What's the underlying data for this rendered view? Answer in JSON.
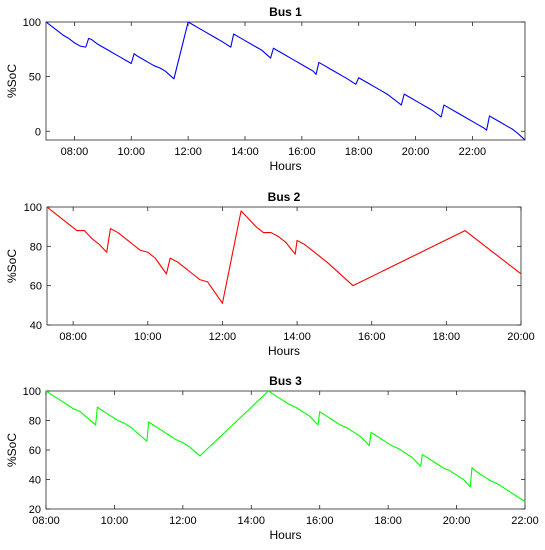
{
  "chart_data": [
    {
      "type": "line",
      "title": "Bus 1",
      "xlabel": "Hours",
      "ylabel": "%SoC",
      "color": "#0000ff",
      "xlim": [
        7.0,
        23.85
      ],
      "ylim": [
        -8,
        100
      ],
      "xticks": [
        8,
        10,
        12,
        14,
        16,
        18,
        20,
        22
      ],
      "xtick_labels": [
        "08:00",
        "10:00",
        "12:00",
        "14:00",
        "16:00",
        "18:00",
        "20:00",
        "22:00"
      ],
      "yticks": [
        0,
        50,
        100
      ],
      "ytick_labels": [
        "0",
        "50",
        "100"
      ],
      "grid": false,
      "x": [
        7.0,
        7.2,
        7.4,
        7.6,
        7.8,
        8.0,
        8.2,
        8.4,
        8.5,
        8.6,
        8.8,
        9.0,
        9.2,
        9.4,
        9.6,
        9.8,
        10.0,
        10.1,
        10.2,
        10.4,
        10.6,
        10.8,
        11.0,
        11.2,
        11.5,
        12.0,
        12.2,
        12.4,
        12.6,
        12.8,
        13.0,
        13.2,
        13.5,
        13.6,
        13.8,
        14.0,
        14.2,
        14.4,
        14.6,
        14.9,
        15.0,
        15.2,
        15.4,
        15.6,
        15.8,
        16.0,
        16.2,
        16.4,
        16.5,
        16.6,
        16.8,
        17.0,
        17.2,
        17.4,
        17.6,
        17.9,
        18.0,
        18.2,
        18.4,
        18.6,
        18.8,
        19.0,
        19.2,
        19.4,
        19.5,
        19.6,
        19.8,
        20.0,
        20.2,
        20.4,
        20.6,
        20.9,
        21.0,
        21.2,
        21.4,
        21.6,
        21.8,
        22.0,
        22.2,
        22.4,
        22.5,
        22.6,
        22.8,
        23.0,
        23.2,
        23.4,
        23.6,
        23.85
      ],
      "y": [
        100,
        96,
        92,
        88,
        85,
        81,
        78,
        77,
        85,
        84,
        80,
        77,
        74,
        71,
        68,
        65,
        62,
        71,
        69,
        66,
        63,
        60,
        58,
        55,
        48,
        100,
        97,
        94,
        91,
        88,
        85,
        82,
        77,
        89,
        86,
        83,
        80,
        77,
        74,
        67,
        76,
        73,
        70,
        67,
        64,
        61,
        58,
        55,
        52,
        63,
        60,
        57,
        54,
        51,
        48,
        43,
        49,
        46,
        43,
        40,
        37,
        34,
        30,
        26,
        24,
        34,
        31,
        28,
        25,
        22,
        19,
        13,
        24,
        21,
        18,
        15,
        12,
        9,
        6,
        3,
        1,
        14,
        11,
        8,
        5,
        2,
        -2,
        -8
      ]
    },
    {
      "type": "line",
      "title": "Bus 2",
      "xlabel": "Hours",
      "ylabel": "%SoC",
      "color": "#ff0000",
      "xlim": [
        7.3,
        20.0
      ],
      "ylim": [
        40,
        100
      ],
      "xticks": [
        8,
        10,
        12,
        14,
        16,
        18,
        20
      ],
      "xtick_labels": [
        "08:00",
        "10:00",
        "12:00",
        "14:00",
        "16:00",
        "18:00",
        "20:00"
      ],
      "yticks": [
        40,
        60,
        80,
        100
      ],
      "ytick_labels": [
        "40",
        "60",
        "80",
        "100"
      ],
      "grid": false,
      "x": [
        7.3,
        7.5,
        7.7,
        7.9,
        8.1,
        8.3,
        8.5,
        8.7,
        8.9,
        9.0,
        9.2,
        9.4,
        9.6,
        9.8,
        10.0,
        10.2,
        10.5,
        10.6,
        10.8,
        11.0,
        11.2,
        11.4,
        11.6,
        12.0,
        12.5,
        12.7,
        12.9,
        13.1,
        13.3,
        13.5,
        13.7,
        13.95,
        14.0,
        14.2,
        14.4,
        14.6,
        14.8,
        15.5,
        18.5,
        20.0
      ],
      "y": [
        100,
        97,
        94,
        91,
        88,
        88,
        84,
        81,
        77,
        89,
        87,
        84,
        81,
        78,
        77,
        74,
        66,
        74,
        72,
        69,
        66,
        63,
        62,
        51,
        98,
        94,
        90,
        87,
        87,
        85,
        82,
        76,
        83,
        81,
        78,
        75,
        72,
        60,
        88,
        66
      ]
    },
    {
      "type": "line",
      "title": "Bus 3",
      "xlabel": "Hours",
      "ylabel": "%SoC",
      "color": "#00ff00",
      "xlim": [
        8.0,
        22.0
      ],
      "ylim": [
        20,
        100
      ],
      "xticks": [
        8,
        10,
        12,
        14,
        16,
        18,
        20,
        22
      ],
      "xtick_labels": [
        "08:00",
        "10:00",
        "12:00",
        "14:00",
        "16:00",
        "18:00",
        "20:00",
        "22:00"
      ],
      "yticks": [
        20,
        40,
        60,
        80,
        100
      ],
      "ytick_labels": [
        "20",
        "40",
        "60",
        "80",
        "100"
      ],
      "grid": false,
      "x": [
        8.0,
        8.2,
        8.4,
        8.6,
        8.8,
        9.0,
        9.2,
        9.45,
        9.5,
        9.7,
        9.9,
        10.1,
        10.3,
        10.5,
        10.7,
        10.95,
        11.0,
        11.2,
        11.4,
        11.6,
        11.8,
        12.0,
        12.2,
        12.5,
        14.5,
        14.7,
        14.9,
        15.1,
        15.3,
        15.5,
        15.7,
        15.95,
        16.0,
        16.2,
        16.4,
        16.6,
        16.8,
        17.0,
        17.2,
        17.45,
        17.5,
        17.7,
        17.9,
        18.1,
        18.3,
        18.5,
        18.7,
        18.95,
        19.0,
        19.2,
        19.4,
        19.6,
        19.8,
        20.0,
        20.2,
        20.4,
        20.45,
        20.6,
        20.8,
        21.0,
        21.2,
        21.4,
        21.6,
        21.8,
        22.0
      ],
      "y": [
        100,
        97,
        94,
        91,
        88,
        86,
        82,
        77,
        89,
        86,
        83,
        80,
        78,
        75,
        71,
        66,
        79,
        76,
        73,
        70,
        67,
        65,
        62,
        56,
        100,
        97,
        94,
        91,
        89,
        86,
        83,
        77,
        86,
        83,
        80,
        77,
        75,
        72,
        69,
        63,
        72,
        69,
        66,
        63,
        61,
        58,
        55,
        49,
        57,
        54,
        51,
        48,
        46,
        43,
        40,
        35,
        48,
        45,
        42,
        39,
        37,
        34,
        31,
        28,
        25
      ]
    }
  ]
}
